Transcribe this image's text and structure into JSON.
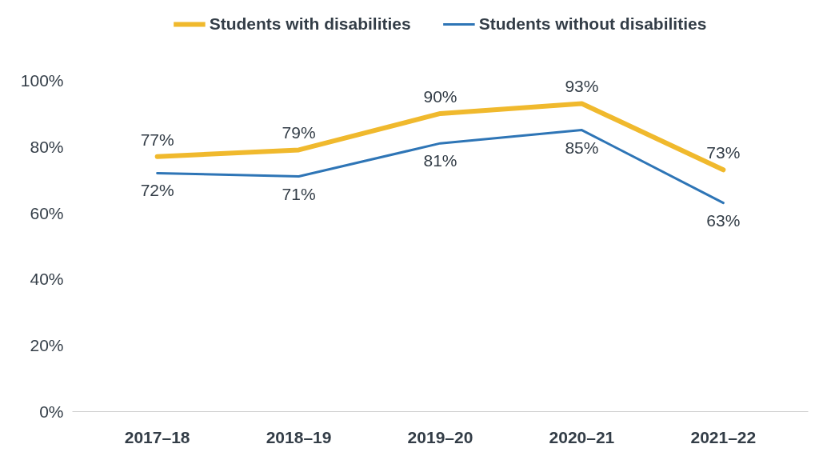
{
  "chart_data": {
    "type": "line",
    "categories": [
      "2017–18",
      "2018–19",
      "2019–20",
      "2020–21",
      "2021–22"
    ],
    "series": [
      {
        "name": "Students with disabilities",
        "color": "#f0b92d",
        "values": [
          77,
          79,
          90,
          93,
          73
        ],
        "value_labels": [
          "77%",
          "79%",
          "90%",
          "93%",
          "73%"
        ]
      },
      {
        "name": "Students without disabilities",
        "color": "#2e75b6",
        "values": [
          72,
          71,
          81,
          85,
          63
        ],
        "value_labels": [
          "72%",
          "71%",
          "81%",
          "85%",
          "63%"
        ]
      }
    ],
    "ylim": [
      0,
      100
    ],
    "yticks": [
      {
        "value": 0,
        "label": "0%"
      },
      {
        "value": 20,
        "label": "20%"
      },
      {
        "value": 40,
        "label": "40%"
      },
      {
        "value": 60,
        "label": "60%"
      },
      {
        "value": 80,
        "label": "80%"
      },
      {
        "value": 100,
        "label": "100%"
      }
    ],
    "grid": false,
    "legend": "top",
    "marker": "none",
    "line_style": "solid"
  }
}
